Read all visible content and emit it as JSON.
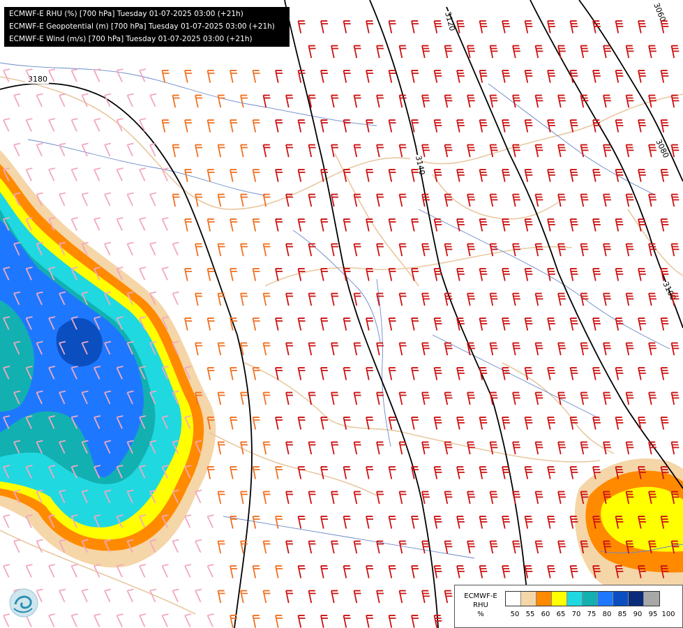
{
  "header": {
    "lines": [
      "ECMWF-E RHU (%) [700 hPa] Tuesday 01-07-2025 03:00 (+21h)",
      "ECMWF-E Geopotential (m) [700 hPa] Tuesday 01-07-2025 03:00 (+21h)",
      "ECMWF-E Wind (m/s) [700 hPa] Tuesday 01-07-2025 03:00 (+21h)"
    ]
  },
  "contours": {
    "labels": [
      "3180",
      "3120",
      "3140",
      "3060",
      "3080",
      "3100"
    ]
  },
  "legend": {
    "model": "ECMWF-E",
    "field": "RHU",
    "unit": "%",
    "ticks": [
      "50",
      "55",
      "60",
      "65",
      "70",
      "75",
      "80",
      "85",
      "90",
      "95",
      "100"
    ],
    "colors": [
      "#ffffff",
      "#f5d6a8",
      "#ff8a00",
      "#ffff00",
      "#20d8e0",
      "#12b0b0",
      "#1e78ff",
      "#0a4ec0",
      "#0a2a7a",
      "#a8a8a8",
      "#606060"
    ]
  },
  "colors": {
    "wind_light": "#f2a8c0",
    "wind_orange": "#f07020",
    "wind_red": "#cc1010",
    "border": "#e8c8a0",
    "river": "#6a88c8",
    "contour": "#000000"
  }
}
